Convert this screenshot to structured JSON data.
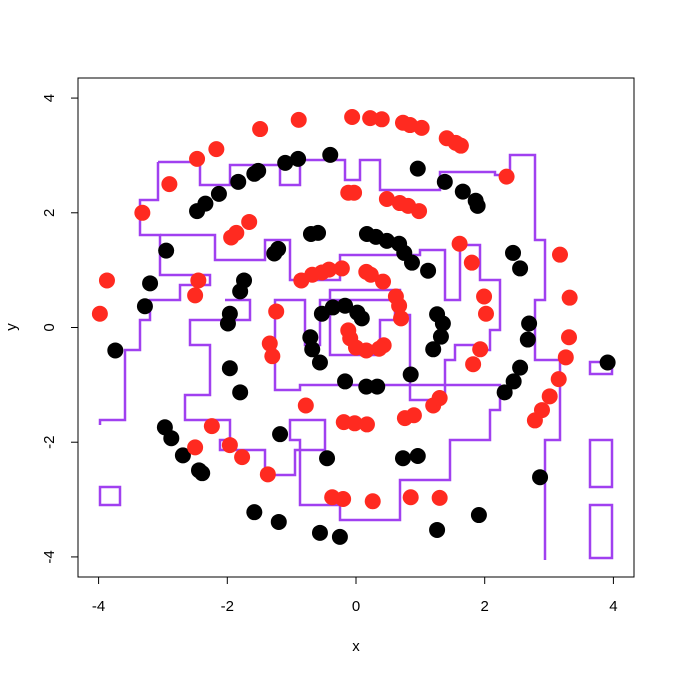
{
  "chart_data": {
    "type": "scatter",
    "xlabel": "x",
    "ylabel": "y",
    "xlim": [
      -4.32,
      4.32
    ],
    "ylim": [
      -4.35,
      4.35
    ],
    "xticks": [
      -4,
      -2,
      0,
      2,
      4
    ],
    "yticks": [
      -4,
      -2,
      0,
      2,
      4
    ],
    "series": [
      {
        "color": "#000000",
        "x": [
          -0.4,
          -0.9,
          -1.1,
          -1.52,
          -1.58,
          -1.83,
          -2.13,
          -2.34,
          -2.47,
          -2.95,
          -3.2,
          -3.28,
          -3.74,
          -2.97,
          -2.87,
          -2.69,
          -2.44,
          -2.39,
          -1.58,
          -1.2,
          -0.56,
          -0.25,
          1.26,
          1.91,
          2.86,
          2.31,
          2.45,
          2.55,
          2.67,
          2.69,
          2.55,
          2.44,
          1.89,
          1.86,
          1.66,
          1.38,
          0.96,
          1.12,
          0.87,
          0.75,
          0.67,
          0.48,
          0.31,
          0.17,
          -0.59,
          -0.7,
          -1.21,
          -1.27,
          -1.74,
          -1.8,
          -1.96,
          -1.99,
          -1.96,
          -1.8,
          -1.18,
          -0.45,
          0.73,
          0.96,
          0.85,
          1.2,
          1.32,
          1.35,
          1.26,
          -0.17,
          0.16,
          0.33,
          -0.56,
          -0.68,
          -0.71,
          -0.53,
          -0.36,
          -0.17,
          0.02,
          0.09,
          3.91
        ],
        "values": [
          3.01,
          2.94,
          2.87,
          2.73,
          2.68,
          2.54,
          2.33,
          2.16,
          2.03,
          1.34,
          0.77,
          0.37,
          -0.4,
          -1.74,
          -1.93,
          -2.23,
          -2.49,
          -2.54,
          -3.22,
          -3.39,
          -3.58,
          -3.65,
          -3.53,
          -3.27,
          -2.61,
          -1.13,
          -0.94,
          -0.7,
          -0.21,
          0.07,
          1.03,
          1.3,
          2.12,
          2.21,
          2.37,
          2.54,
          2.77,
          0.99,
          1.13,
          1.3,
          1.46,
          1.51,
          1.58,
          1.63,
          1.65,
          1.63,
          1.37,
          1.29,
          0.82,
          0.63,
          0.24,
          0.07,
          -0.71,
          -1.13,
          -1.86,
          -2.28,
          -2.28,
          -2.24,
          -0.82,
          -0.38,
          -0.16,
          0.07,
          0.23,
          -0.94,
          -1.03,
          -1.03,
          -0.61,
          -0.38,
          -0.17,
          0.24,
          0.35,
          0.38,
          0.26,
          0.16,
          -0.61
        ]
      },
      {
        "color": "#ff2a20",
        "x": [
          -0.89,
          -1.49,
          -2.17,
          -2.47,
          -2.9,
          -3.32,
          -3.98,
          -3.87,
          -2.5,
          -2.24,
          -1.96,
          -1.77,
          -1.37,
          -0.37,
          -0.2,
          0.26,
          0.85,
          1.3,
          -0.06,
          0.22,
          0.4,
          0.73,
          0.84,
          1.02,
          1.41,
          1.55,
          1.63,
          2.34,
          3.17,
          3.32,
          3.31,
          3.26,
          3.15,
          3.01,
          2.89,
          2.78,
          -1.94,
          -1.86,
          -1.66,
          -2.5,
          -2.45,
          -1.24,
          -1.34,
          -1.3,
          -0.78,
          -0.19,
          -0.02,
          0.17,
          0.76,
          0.9,
          1.2,
          1.3,
          1.82,
          1.93,
          2.02,
          1.99,
          1.61,
          1.8,
          -0.12,
          -0.03,
          0.48,
          0.68,
          0.81,
          0.98,
          -0.85,
          -0.68,
          -0.53,
          -0.42,
          -0.22,
          0.16,
          0.23,
          0.42,
          0.62,
          0.67,
          0.7,
          0.43,
          0.36,
          0.16,
          0.0,
          -0.09,
          -0.12
        ],
        "values": [
          3.62,
          3.46,
          3.11,
          2.94,
          2.5,
          2.0,
          0.24,
          0.82,
          -2.09,
          -1.72,
          -2.05,
          -2.26,
          -2.56,
          -2.96,
          -2.99,
          -3.03,
          -2.96,
          -2.97,
          3.67,
          3.65,
          3.63,
          3.57,
          3.53,
          3.48,
          3.3,
          3.22,
          3.17,
          2.63,
          1.27,
          0.52,
          -0.17,
          -0.52,
          -0.9,
          -1.2,
          -1.44,
          -1.62,
          1.57,
          1.65,
          1.84,
          0.56,
          0.82,
          0.28,
          -0.28,
          -0.5,
          -1.36,
          -1.65,
          -1.67,
          -1.69,
          -1.58,
          -1.53,
          -1.36,
          -1.23,
          -0.64,
          -0.38,
          0.24,
          0.54,
          1.46,
          1.13,
          2.35,
          2.35,
          2.24,
          2.17,
          2.12,
          2.03,
          0.82,
          0.92,
          0.96,
          1.01,
          1.03,
          0.97,
          0.92,
          0.8,
          0.54,
          0.38,
          0.16,
          -0.31,
          -0.37,
          -0.4,
          -0.35,
          -0.19,
          -0.05
        ]
      }
    ]
  }
}
